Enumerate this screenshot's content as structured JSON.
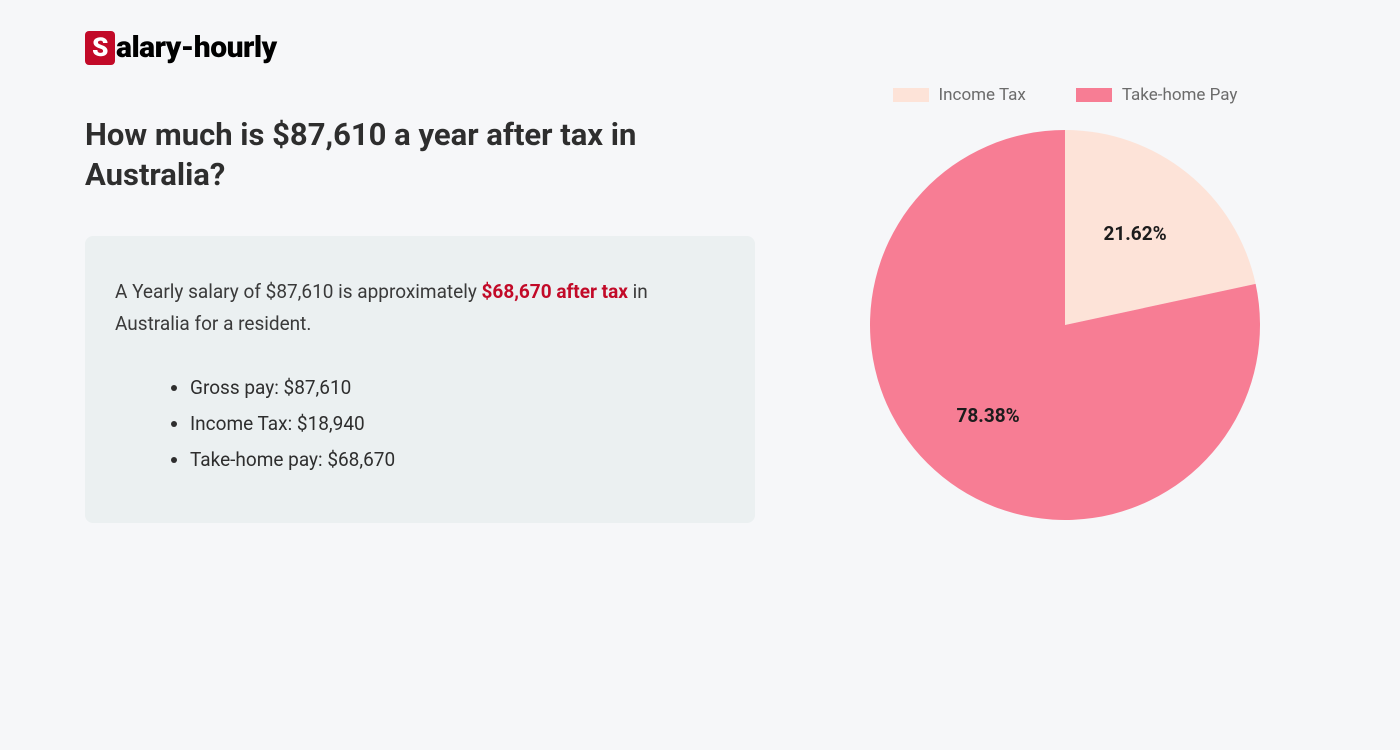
{
  "logo": {
    "badge_letter": "S",
    "rest": "alary-hourly",
    "badge_bg": "#c20a28",
    "badge_fg": "#ffffff"
  },
  "heading": "How much is $87,610 a year after tax in Australia?",
  "summary": {
    "prefix": "A Yearly salary of $87,610 is approximately ",
    "highlight": "$68,670 after tax",
    "suffix": " in Australia for a resident."
  },
  "breakdown": [
    "Gross pay: $87,610",
    "Income Tax: $18,940",
    "Take-home pay: $68,670"
  ],
  "chart": {
    "type": "pie",
    "radius": 195,
    "background_color": "#f6f7f9",
    "legend": [
      {
        "label": "Income Tax",
        "color": "#fde3d8"
      },
      {
        "label": "Take-home Pay",
        "color": "#f77d94"
      }
    ],
    "slices": [
      {
        "name": "Income Tax",
        "value": 21.62,
        "percent_label": "21.62%",
        "color": "#fde3d8"
      },
      {
        "name": "Take-home Pay",
        "value": 78.38,
        "percent_label": "78.38%",
        "color": "#f77d94"
      }
    ],
    "label_fontsize": 19,
    "label_fontweight": 700,
    "label_color": "#1c1c1c",
    "legend_fontsize": 17,
    "legend_color": "#6b6b6b"
  },
  "infobox_bg": "#ebf0f1",
  "heading_color": "#2e2e2e",
  "heading_fontsize": 31,
  "body_fontsize": 19,
  "highlight_color": "#c20a28"
}
